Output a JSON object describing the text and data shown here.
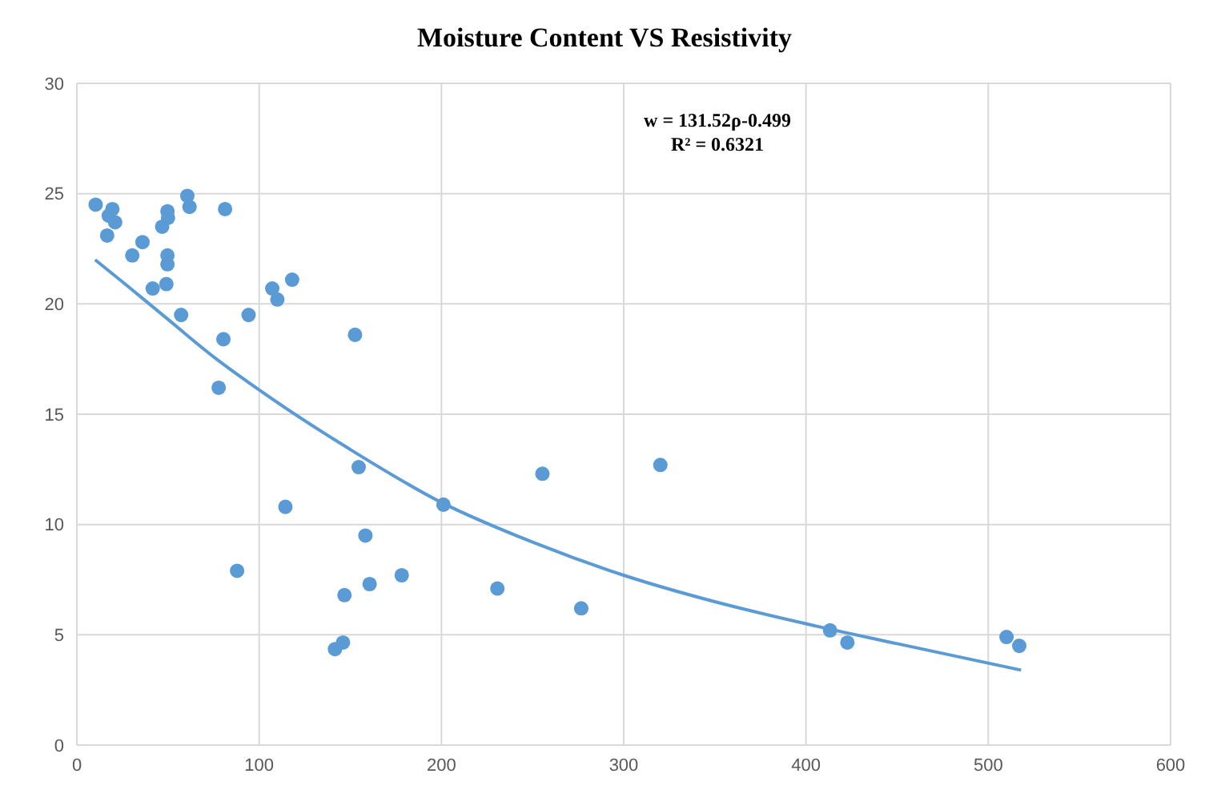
{
  "chart_data": {
    "type": "scatter",
    "title": "Moisture Content VS Resistivity",
    "annotations": [
      "w = 131.52ρ-0.499",
      "R² = 0.6321"
    ],
    "xlim": [
      0,
      600
    ],
    "xticks": [
      0,
      100,
      200,
      300,
      400,
      500,
      600
    ],
    "ylim": [
      0,
      30
    ],
    "yticks": [
      0,
      5,
      10,
      15,
      20,
      25,
      30
    ],
    "grid": true,
    "legend": false,
    "marker": "circle",
    "series": [
      {
        "color": "#5b9bd5",
        "x": [
          10.3,
          19.5,
          17.5,
          21,
          16.6,
          36,
          30.4,
          49.7,
          46.8,
          50,
          49.7,
          49.7,
          60.6,
          61.8,
          81.3,
          41.6,
          49.1,
          57.2,
          94.2,
          107.2,
          110,
          118.1,
          80.4,
          152.6,
          77.8,
          154.6,
          114.4,
          201.1,
          158.3,
          87.9,
          178.2,
          160.6,
          146.8,
          146,
          141.6,
          230.7,
          255.4,
          320.1,
          276.7,
          413.2,
          422.7,
          510,
          517
        ],
        "values": [
          24.5,
          24.3,
          24.0,
          23.7,
          23.1,
          22.8,
          22.2,
          24.2,
          23.5,
          23.9,
          22.2,
          21.8,
          24.9,
          24.4,
          24.3,
          20.7,
          20.9,
          19.5,
          19.5,
          20.7,
          20.2,
          21.1,
          18.4,
          18.6,
          16.2,
          12.6,
          10.8,
          10.9,
          9.5,
          7.9,
          7.7,
          7.3,
          6.8,
          4.65,
          4.35,
          7.1,
          12.3,
          12.7,
          6.2,
          5.2,
          4.65,
          4.9,
          4.5
        ]
      },
      {
        "type": "line",
        "color": "#5b9bd5",
        "marker": "none",
        "x": [
          10,
          25,
          50,
          75,
          100,
          150,
          200,
          250,
          300,
          350,
          400,
          450,
          518
        ],
        "values": [
          22,
          21,
          19.3,
          17.6,
          16.1,
          13.4,
          11.0,
          9.2,
          7.7,
          6.5,
          5.5,
          4.6,
          3.4
        ]
      }
    ]
  }
}
